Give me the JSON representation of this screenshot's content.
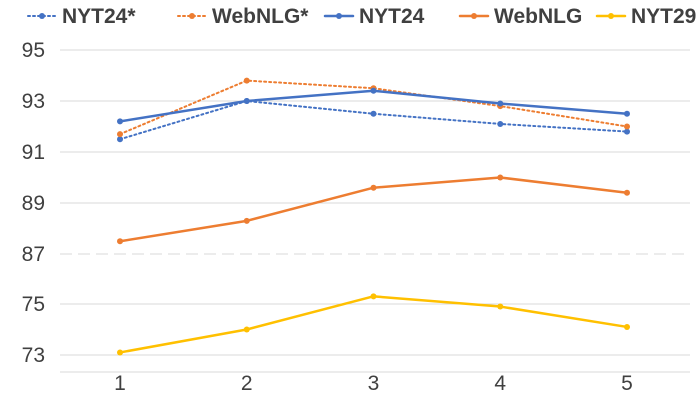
{
  "chart_data": {
    "type": "line",
    "title": "",
    "xlabel": "",
    "ylabel": "",
    "x": [
      1,
      2,
      3,
      4,
      5
    ],
    "y_ticks": [
      73,
      75,
      87,
      89,
      91,
      93,
      95
    ],
    "y_axis_break": "between 75 and 87",
    "grid": "horizontal",
    "legend_position": "top",
    "series": [
      {
        "name": "NYT24*",
        "color": "#4472C4",
        "dashed": true,
        "values": [
          91.5,
          93.0,
          92.5,
          92.1,
          91.8
        ]
      },
      {
        "name": "WebNLG*",
        "color": "#ED7D31",
        "dashed": true,
        "values": [
          91.7,
          93.8,
          93.5,
          92.8,
          92.0
        ]
      },
      {
        "name": "NYT24",
        "color": "#4472C4",
        "dashed": false,
        "values": [
          92.2,
          93.0,
          93.4,
          92.9,
          92.5
        ]
      },
      {
        "name": "WebNLG",
        "color": "#ED7D31",
        "dashed": false,
        "values": [
          87.5,
          88.3,
          89.6,
          90.0,
          89.4
        ]
      },
      {
        "name": "NYT29",
        "color": "#FFC000",
        "dashed": false,
        "values": [
          73.1,
          74.0,
          75.3,
          74.9,
          74.1
        ]
      }
    ]
  }
}
